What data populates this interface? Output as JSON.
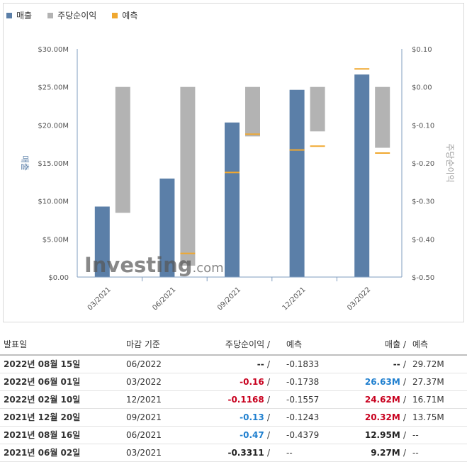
{
  "legend": {
    "revenue": "매출",
    "eps": "주당순이익",
    "forecast": "예측"
  },
  "colors": {
    "revenue": "#5b7fa8",
    "eps": "#b3b3b3",
    "forecast": "#f0a830",
    "negative": "#c8001e",
    "positive": "#1f7fcf"
  },
  "watermark": "Investing.com",
  "chart_data": {
    "type": "bar",
    "categories": [
      "03/2021",
      "06/2021",
      "09/2021",
      "12/2021",
      "03/2022"
    ],
    "left_axis": {
      "label": "매출",
      "ticks": [
        "$0.00",
        "$5.00M",
        "$10.00M",
        "$15.00M",
        "$20.00M",
        "$25.00M",
        "$30.00M"
      ],
      "range": [
        0,
        30
      ]
    },
    "right_axis": {
      "label": "주당순이익",
      "ticks": [
        "$-0.50",
        "$-0.40",
        "$-0.30",
        "$-0.20",
        "$-0.10",
        "$0.00",
        "$0.10"
      ],
      "range": [
        -0.5,
        0.1
      ]
    },
    "series": [
      {
        "name": "매출",
        "unit": "$M",
        "values": [
          9.27,
          12.95,
          20.32,
          24.62,
          26.63
        ]
      },
      {
        "name": "매출 예측",
        "unit": "$M",
        "values": [
          null,
          null,
          13.75,
          16.71,
          27.37
        ]
      },
      {
        "name": "주당순이익",
        "unit": "$",
        "values": [
          -0.3311,
          -0.47,
          -0.13,
          -0.1168,
          -0.16
        ]
      },
      {
        "name": "주당순이익 예측",
        "unit": "$",
        "values": [
          null,
          -0.4379,
          -0.1243,
          -0.1557,
          -0.1738
        ]
      }
    ]
  },
  "table": {
    "headers": {
      "date": "발표일",
      "period": "마감 기준",
      "eps": "주당순이익",
      "eps_forecast": "예측",
      "revenue": "매출",
      "revenue_forecast": "예측"
    },
    "rows": [
      {
        "date": "2022년 08월 15일",
        "period": "06/2022",
        "eps": "--",
        "eps_tone": "neu",
        "eps_forecast": "-0.1833",
        "revenue": "--",
        "rev_tone": "neu",
        "revenue_forecast": "29.72M"
      },
      {
        "date": "2022년 06월 01일",
        "period": "03/2022",
        "eps": "-0.16",
        "eps_tone": "neg",
        "eps_forecast": "-0.1738",
        "revenue": "26.63M",
        "rev_tone": "pos",
        "revenue_forecast": "27.37M"
      },
      {
        "date": "2022년 02월 10일",
        "period": "12/2021",
        "eps": "-0.1168",
        "eps_tone": "neg",
        "eps_forecast": "-0.1557",
        "revenue": "24.62M",
        "rev_tone": "neg",
        "revenue_forecast": "16.71M"
      },
      {
        "date": "2021년 12월 20일",
        "period": "09/2021",
        "eps": "-0.13",
        "eps_tone": "pos",
        "eps_forecast": "-0.1243",
        "revenue": "20.32M",
        "rev_tone": "neg",
        "revenue_forecast": "13.75M"
      },
      {
        "date": "2021년 08월 16일",
        "period": "06/2021",
        "eps": "-0.47",
        "eps_tone": "pos",
        "eps_forecast": "-0.4379",
        "revenue": "12.95M",
        "rev_tone": "neu",
        "revenue_forecast": "--"
      },
      {
        "date": "2021년 06월 02일",
        "period": "03/2021",
        "eps": "-0.3311",
        "eps_tone": "neu",
        "eps_forecast": "--",
        "revenue": "9.27M",
        "rev_tone": "neu",
        "revenue_forecast": "--"
      }
    ]
  }
}
